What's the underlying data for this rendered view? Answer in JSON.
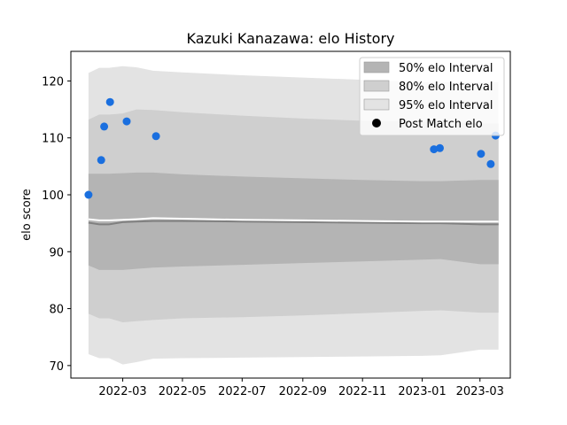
{
  "chart_data": {
    "type": "scatter",
    "title": "Kazuki Kanazawa: elo History",
    "xlabel": "",
    "ylabel": "elo score",
    "xlim": [
      "2022-01-07",
      "2023-04-01"
    ],
    "ylim": [
      67.8,
      125.2
    ],
    "x_ticks": [
      "2022-03-01",
      "2022-05-01",
      "2022-07-01",
      "2022-09-01",
      "2022-11-01",
      "2023-01-01",
      "2023-03-01"
    ],
    "x_tick_labels": [
      "2022-03",
      "2022-05",
      "2022-07",
      "2022-09",
      "2022-11",
      "2023-01",
      "2023-03"
    ],
    "y_ticks": [
      70,
      80,
      90,
      100,
      110,
      120
    ],
    "y_tick_labels": [
      "70",
      "80",
      "90",
      "100",
      "110",
      "120"
    ],
    "grid": false,
    "legend_position": "upper-right",
    "legend": [
      {
        "label": "50% elo Interval",
        "kind": "band50"
      },
      {
        "label": "80% elo Interval",
        "kind": "band80"
      },
      {
        "label": "95% elo Interval",
        "kind": "band95"
      },
      {
        "label": "Post Match elo",
        "kind": "marker"
      }
    ],
    "colors": {
      "band50": "#b4b4b4",
      "band80": "#cfcfcf",
      "band95": "#e3e3e3",
      "mean_line": "#808080",
      "pre_line": "#ffffff",
      "points": "#1a6fdf"
    },
    "bands": {
      "dates": [
        "2022-01-25",
        "2022-02-05",
        "2022-02-15",
        "2022-03-01",
        "2022-03-15",
        "2022-04-01",
        "2022-05-01",
        "2022-07-01",
        "2022-09-01",
        "2022-11-01",
        "2023-01-01",
        "2023-01-20",
        "2023-03-01",
        "2023-03-20"
      ],
      "mean": [
        95.1,
        94.8,
        94.8,
        95.2,
        95.3,
        95.4,
        95.4,
        95.3,
        95.2,
        95.1,
        95.0,
        95.0,
        94.8,
        94.8
      ],
      "p50_lower": [
        87.6,
        86.8,
        86.8,
        86.8,
        87.0,
        87.2,
        87.4,
        87.7,
        88.0,
        88.3,
        88.6,
        88.7,
        87.8,
        87.8
      ],
      "p50_upper": [
        103.7,
        103.7,
        103.7,
        103.8,
        103.9,
        103.9,
        103.6,
        103.2,
        102.9,
        102.6,
        102.4,
        102.4,
        102.6,
        102.6
      ],
      "p80_lower": [
        79.1,
        78.3,
        78.3,
        77.6,
        77.8,
        78.0,
        78.3,
        78.5,
        78.8,
        79.2,
        79.6,
        79.7,
        79.3,
        79.3
      ],
      "p80_upper": [
        113.2,
        114.1,
        114.1,
        114.3,
        115.0,
        114.9,
        114.5,
        113.9,
        113.4,
        113.0,
        112.8,
        112.8,
        112.5,
        112.5
      ],
      "p95_lower": [
        72.0,
        71.3,
        71.3,
        70.2,
        70.6,
        71.2,
        71.3,
        71.4,
        71.5,
        71.6,
        71.7,
        71.8,
        72.8,
        72.8
      ],
      "p95_upper": [
        121.4,
        122.3,
        122.3,
        122.6,
        122.4,
        121.8,
        121.5,
        121.0,
        120.6,
        120.2,
        119.8,
        119.8,
        119.8,
        119.8
      ],
      "pre_match": [
        95.7,
        95.5,
        95.5,
        95.6,
        95.7,
        95.9,
        95.8,
        95.6,
        95.5,
        95.4,
        95.3,
        95.3,
        95.3,
        95.3
      ]
    },
    "points": [
      {
        "x": "2022-01-25",
        "y": 100.0
      },
      {
        "x": "2022-02-07",
        "y": 106.1
      },
      {
        "x": "2022-02-10",
        "y": 112.0
      },
      {
        "x": "2022-02-16",
        "y": 116.3
      },
      {
        "x": "2022-03-05",
        "y": 112.9
      },
      {
        "x": "2022-04-04",
        "y": 110.3
      },
      {
        "x": "2023-01-13",
        "y": 108.0
      },
      {
        "x": "2023-01-19",
        "y": 108.2
      },
      {
        "x": "2023-03-02",
        "y": 107.2
      },
      {
        "x": "2023-03-12",
        "y": 105.4
      },
      {
        "x": "2023-03-17",
        "y": 110.4
      }
    ]
  }
}
